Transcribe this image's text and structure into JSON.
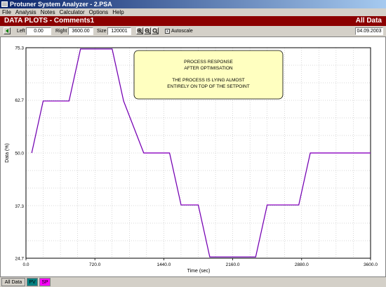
{
  "window": {
    "title": "Protuner System Analyzer - 2.PSA"
  },
  "menu": [
    "File",
    "Analysis",
    "Notes",
    "Calculator",
    "Options",
    "Help"
  ],
  "header": {
    "title": "DATA PLOTS - Comments1",
    "mode": "All Data"
  },
  "toolbar": {
    "left_label": "Left",
    "left_value": "0.00",
    "right_label": "Right",
    "right_value": "3600.00",
    "size_label": "Size",
    "size_value": "120001",
    "autoscale_label": "Autoscale",
    "date": "04.09.2003",
    "zoom_in_icon": "zoom-in-icon",
    "zoom_out_icon": "zoom-out-icon",
    "zoom_full_icon": "zoom-full-icon",
    "autoscale_mark": "x"
  },
  "note": {
    "line1": "PROCESS RESPONSE",
    "line2": "AFTER OPTIMISATION",
    "line3": "THE PROCESS IS LYING ALMOST",
    "line4": "ENTIRELY ON TOP OF THE SETPOINT"
  },
  "tabs": [
    "All Data",
    "PV",
    "SP"
  ],
  "colors": {
    "pv": "#2a2a8a",
    "sp": "#ff00ff",
    "redbar": "#8b0000",
    "tab_pv": "#008080",
    "tab_sp": "#ff00ff"
  },
  "chart_data": {
    "type": "line",
    "xlabel": "Time (sec)",
    "ylabel": "Data (%)",
    "xlim": [
      0,
      3600
    ],
    "ylim": [
      24.7,
      75.3
    ],
    "x_ticks": [
      "0.0",
      "720.0",
      "1440.0",
      "2160.0",
      "2880.0",
      "3600.0"
    ],
    "y_ticks": [
      "24.7",
      "37.3",
      "50.0",
      "62.7",
      "75.3"
    ],
    "grid": true,
    "series": [
      {
        "name": "SP",
        "x": [
          60,
          180,
          180,
          450,
          450,
          570,
          570,
          900,
          900,
          1020,
          1020,
          1230,
          1230,
          1500,
          1500,
          1620,
          1620,
          1800,
          1800,
          1920,
          1920,
          2400,
          2400,
          2520,
          2520,
          2850,
          2850,
          2970,
          2970,
          3600
        ],
        "y": [
          50.0,
          62.5,
          62.5,
          62.5,
          62.5,
          75.0,
          75.0,
          75.0,
          75.0,
          62.5,
          62.5,
          50.0,
          50.0,
          50.0,
          50.0,
          37.5,
          37.5,
          37.5,
          37.5,
          25.0,
          25.0,
          25.0,
          25.0,
          37.5,
          37.5,
          37.5,
          37.5,
          50.0,
          50.0,
          50.0
        ]
      },
      {
        "name": "PV",
        "x": [
          60,
          180,
          180,
          450,
          450,
          570,
          570,
          900,
          900,
          1020,
          1020,
          1230,
          1230,
          1500,
          1500,
          1620,
          1620,
          1800,
          1800,
          1920,
          1920,
          2400,
          2400,
          2520,
          2520,
          2850,
          2850,
          2970,
          2970,
          3600
        ],
        "y": [
          50.0,
          62.5,
          62.5,
          62.5,
          62.5,
          75.0,
          75.0,
          75.0,
          75.0,
          62.5,
          62.5,
          50.0,
          50.0,
          50.0,
          50.0,
          37.5,
          37.5,
          37.5,
          37.5,
          25.0,
          25.0,
          25.0,
          25.0,
          37.5,
          37.5,
          37.5,
          37.5,
          50.0,
          50.0,
          50.0
        ]
      }
    ]
  }
}
